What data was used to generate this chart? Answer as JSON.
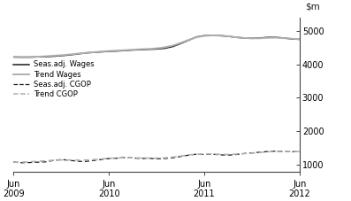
{
  "ylim": [
    800,
    5400
  ],
  "yticks": [
    1000,
    2000,
    3000,
    4000,
    5000
  ],
  "xlim": [
    0,
    36
  ],
  "xtick_positions": [
    0,
    12,
    24,
    36
  ],
  "xtick_labels": [
    "Jun\n2009",
    "Jun\n2010",
    "Jun\n2011",
    "Jun\n2012"
  ],
  "seas_wages": [
    4220,
    4215,
    4215,
    4222,
    4228,
    4240,
    4258,
    4278,
    4308,
    4338,
    4358,
    4372,
    4388,
    4398,
    4412,
    4428,
    4438,
    4448,
    4458,
    4478,
    4528,
    4618,
    4718,
    4818,
    4858,
    4868,
    4858,
    4838,
    4808,
    4788,
    4778,
    4788,
    4808,
    4808,
    4788,
    4758,
    4748
  ],
  "trend_wages": [
    4215,
    4215,
    4220,
    4228,
    4242,
    4258,
    4272,
    4292,
    4318,
    4342,
    4362,
    4382,
    4398,
    4412,
    4422,
    4438,
    4452,
    4462,
    4478,
    4508,
    4558,
    4638,
    4728,
    4808,
    4852,
    4865,
    4858,
    4840,
    4810,
    4788,
    4776,
    4778,
    4793,
    4798,
    4783,
    4766,
    4752
  ],
  "seas_cgop": [
    1080,
    1060,
    1065,
    1075,
    1085,
    1125,
    1155,
    1135,
    1105,
    1095,
    1125,
    1155,
    1185,
    1195,
    1215,
    1205,
    1185,
    1195,
    1175,
    1185,
    1205,
    1245,
    1285,
    1315,
    1305,
    1315,
    1295,
    1285,
    1305,
    1335,
    1355,
    1375,
    1395,
    1405,
    1395,
    1385,
    1395
  ],
  "trend_cgop": [
    1070,
    1078,
    1088,
    1102,
    1118,
    1132,
    1142,
    1142,
    1138,
    1142,
    1152,
    1172,
    1192,
    1202,
    1208,
    1205,
    1202,
    1198,
    1196,
    1205,
    1228,
    1258,
    1292,
    1312,
    1318,
    1318,
    1312,
    1308,
    1318,
    1332,
    1348,
    1368,
    1388,
    1398,
    1398,
    1392,
    1395
  ],
  "color_dark": "#1a1a1a",
  "color_gray": "#b0b0b0",
  "background": "#ffffff",
  "legend_labels": [
    "Seas.adj. Wages",
    "Trend Wages",
    "Seas.adj. CGOP",
    "Trend CGOP"
  ]
}
